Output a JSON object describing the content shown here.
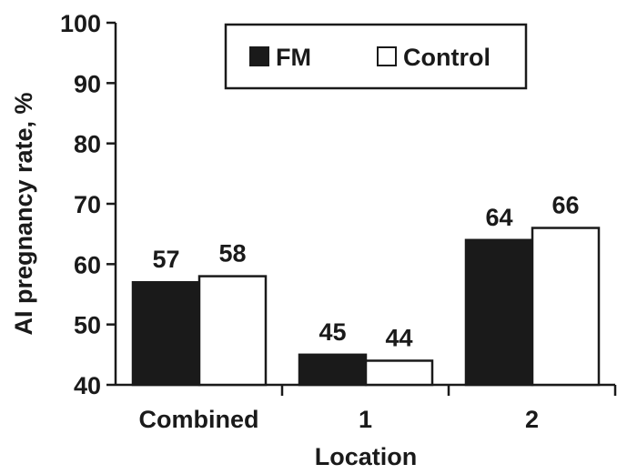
{
  "chart_data": {
    "type": "bar",
    "title": "",
    "xlabel": "Location",
    "ylabel": "AI pregnancy rate, %",
    "categories": [
      "Combined",
      "1",
      "2"
    ],
    "series": [
      {
        "name": "FM",
        "values": [
          57,
          45,
          64
        ],
        "color": "#1a1a1a"
      },
      {
        "name": "Control",
        "values": [
          58,
          44,
          66
        ],
        "color": "#ffffff"
      }
    ],
    "ylim": [
      40,
      100
    ],
    "yticks": [
      40,
      50,
      60,
      70,
      80,
      90,
      100
    ],
    "grid": false,
    "legend_position": "top-right",
    "data_labels": true
  }
}
